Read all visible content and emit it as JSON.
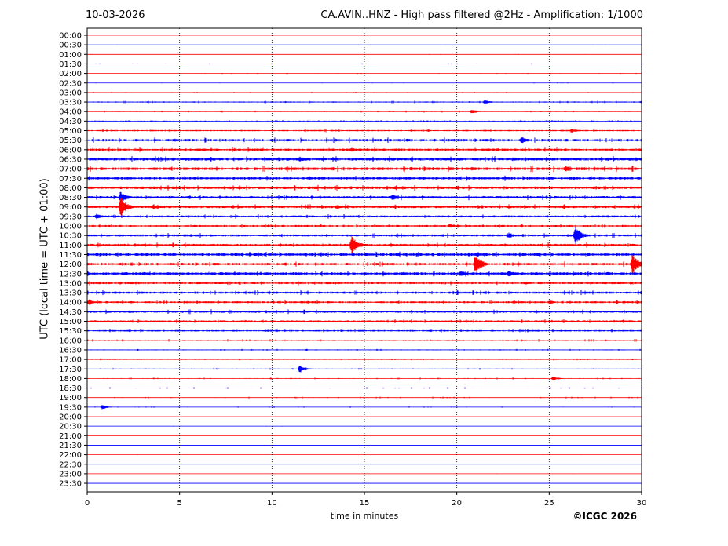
{
  "header": {
    "date": "10-03-2026",
    "title": "CA.AVIN..HNZ - High pass filtered @2Hz - Amplification: 1/1000"
  },
  "footer": {
    "copyright": "©ICGC 2026"
  },
  "chart_data": {
    "type": "line",
    "title": "CA.AVIN..HNZ - High pass filtered @2Hz - Amplification: 1/1000",
    "xlabel": "time in minutes",
    "ylabel": "UTC (local time = UTC + 01:00)",
    "xlim": [
      0,
      30
    ],
    "xticks": [
      0,
      5,
      10,
      15,
      20,
      25,
      30
    ],
    "grid_x": true,
    "row_labels": [
      "00:00",
      "00:30",
      "01:00",
      "01:30",
      "02:00",
      "02:30",
      "03:00",
      "03:30",
      "04:00",
      "04:30",
      "05:00",
      "05:30",
      "06:00",
      "06:30",
      "07:00",
      "07:30",
      "08:00",
      "08:30",
      "09:00",
      "09:30",
      "10:00",
      "10:30",
      "11:00",
      "11:30",
      "12:00",
      "12:30",
      "13:00",
      "13:30",
      "14:00",
      "14:30",
      "15:00",
      "15:30",
      "16:00",
      "16:30",
      "17:00",
      "17:30",
      "18:00",
      "18:30",
      "19:00",
      "19:30",
      "20:00",
      "20:30",
      "21:00",
      "21:30",
      "22:00",
      "22:30",
      "23:00",
      "23:30"
    ],
    "colors": [
      "#ff0000",
      "#0000ff"
    ],
    "noise_levels": [
      0.2,
      0.2,
      0.25,
      0.35,
      0.3,
      0.3,
      0.4,
      0.7,
      0.6,
      0.6,
      0.9,
      1.6,
      1.4,
      1.8,
      1.9,
      1.6,
      1.7,
      1.7,
      1.6,
      1.3,
      1.2,
      1.4,
      1.5,
      1.7,
      1.6,
      1.7,
      1.3,
      1.4,
      1.3,
      1.4,
      1.2,
      1.0,
      0.8,
      0.6,
      0.6,
      0.5,
      0.5,
      0.5,
      0.5,
      0.4,
      0.2,
      0.2,
      0.2,
      0.2,
      0.2,
      0.2,
      0.2,
      0.2
    ],
    "events": [
      {
        "row": "03:30",
        "minute": 21.5,
        "amplitude": 3
      },
      {
        "row": "04:00",
        "minute": 20.8,
        "amplitude": 3
      },
      {
        "row": "05:00",
        "minute": 26.2,
        "amplitude": 3
      },
      {
        "row": "05:30",
        "minute": 23.5,
        "amplitude": 5
      },
      {
        "row": "06:00",
        "minute": 14.3,
        "amplitude": 3
      },
      {
        "row": "06:30",
        "minute": 11.5,
        "amplitude": 4
      },
      {
        "row": "07:00",
        "minute": 25.9,
        "amplitude": 4
      },
      {
        "row": "08:30",
        "minute": 16.5,
        "amplitude": 5
      },
      {
        "row": "08:30",
        "minute": 1.8,
        "amplitude": 8
      },
      {
        "row": "09:00",
        "minute": 1.8,
        "amplitude": 14
      },
      {
        "row": "09:00",
        "minute": 3.6,
        "amplitude": 4
      },
      {
        "row": "09:00",
        "minute": 13.5,
        "amplitude": 3
      },
      {
        "row": "09:30",
        "minute": 0.5,
        "amplitude": 4
      },
      {
        "row": "10:00",
        "minute": 19.6,
        "amplitude": 3
      },
      {
        "row": "10:30",
        "minute": 26.4,
        "amplitude": 13
      },
      {
        "row": "10:30",
        "minute": 22.8,
        "amplitude": 4
      },
      {
        "row": "11:00",
        "minute": 14.3,
        "amplitude": 13
      },
      {
        "row": "12:00",
        "minute": 21.0,
        "amplitude": 14
      },
      {
        "row": "12:00",
        "minute": 29.5,
        "amplitude": 13
      },
      {
        "row": "12:30",
        "minute": 20.2,
        "amplitude": 4
      },
      {
        "row": "12:30",
        "minute": 22.8,
        "amplitude": 5
      },
      {
        "row": "13:30",
        "minute": 30.0,
        "amplitude": 4
      },
      {
        "row": "14:00",
        "minute": 0.1,
        "amplitude": 4
      },
      {
        "row": "14:00",
        "minute": 25.0,
        "amplitude": 3
      },
      {
        "row": "17:30",
        "minute": 11.5,
        "amplitude": 5
      },
      {
        "row": "18:00",
        "minute": 25.2,
        "amplitude": 3
      },
      {
        "row": "19:30",
        "minute": 0.8,
        "amplitude": 3
      }
    ]
  }
}
